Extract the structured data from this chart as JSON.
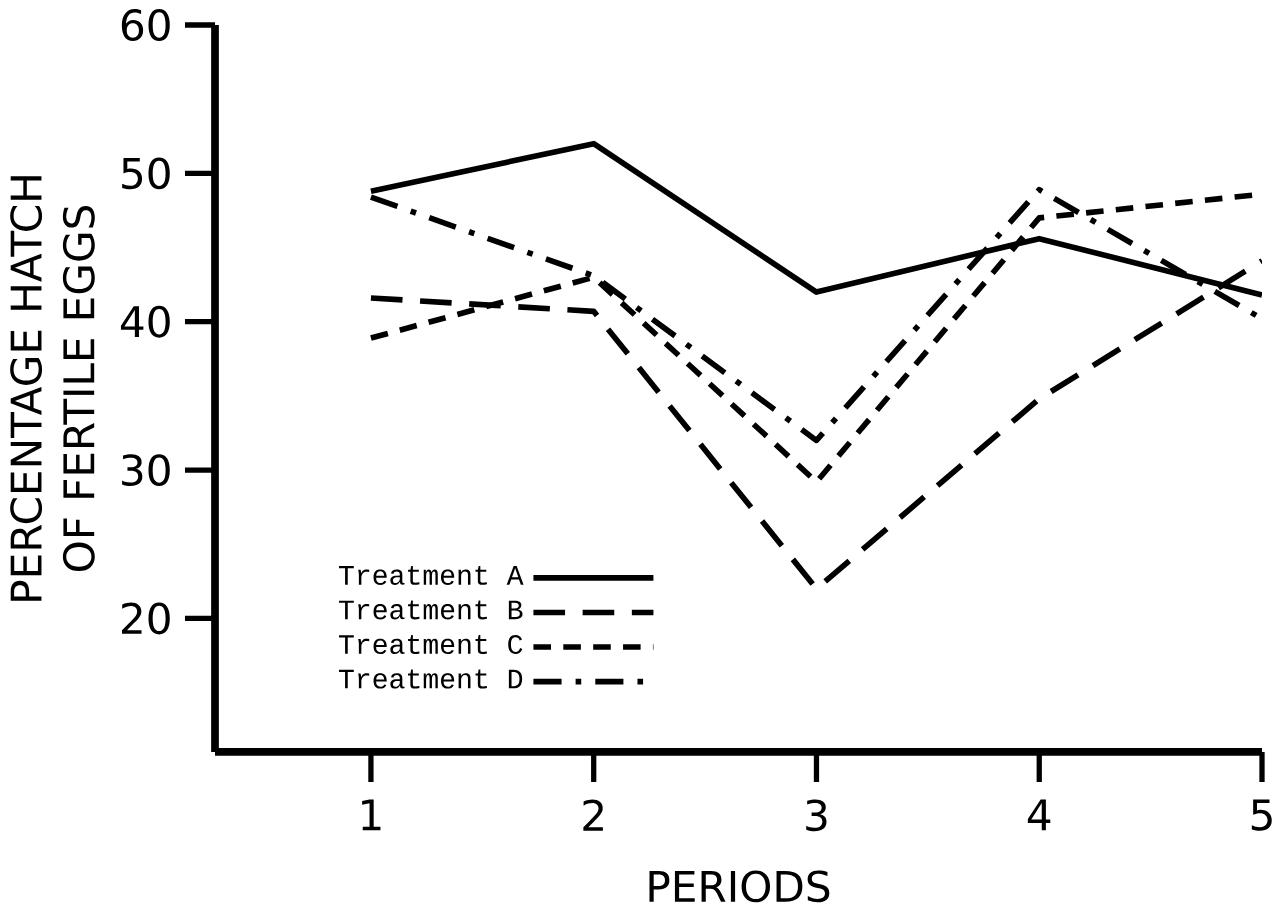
{
  "chart_data": {
    "type": "line",
    "xlabel": "PERIODS",
    "ylabel": "PERCENTAGE HATCH OF FERTILE EGGS",
    "x": [
      1,
      2,
      3,
      4,
      5
    ],
    "xlim": [
      0.3,
      5
    ],
    "xticks": [
      1,
      2,
      3,
      4,
      5
    ],
    "ylim": [
      11,
      60
    ],
    "yticks": [
      20,
      30,
      40,
      50,
      60
    ],
    "legend": "bottom left",
    "grid": false,
    "marker": "none",
    "series": [
      {
        "name": "Treatment A",
        "color": "#000000",
        "line_style": "solid",
        "values": [
          48.8,
          52,
          42,
          45.6,
          41.8
        ]
      },
      {
        "name": "Treatment B",
        "color": "#000000",
        "line_style": "long dashed",
        "values": [
          41.6,
          40.7,
          22,
          34.8,
          44.1
        ]
      },
      {
        "name": "Treatment C",
        "color": "#000000",
        "line_style": "dashed",
        "values": [
          38.9,
          43,
          29.2,
          47,
          48.6
        ]
      },
      {
        "name": "Treatment D",
        "color": "#000000",
        "line_style": "dash dot",
        "values": [
          48.4,
          43.1,
          32,
          48.9,
          40.2
        ]
      }
    ]
  }
}
